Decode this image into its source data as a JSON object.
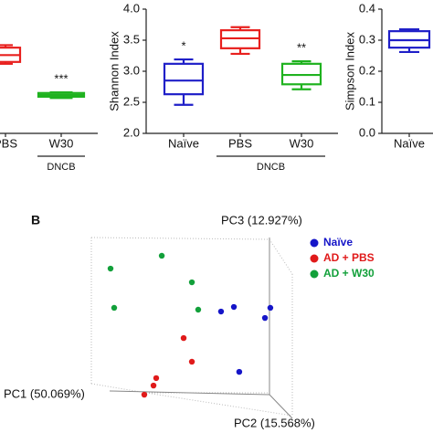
{
  "chart_data": [
    {
      "type": "box",
      "categories": [
        "PBS",
        "W30"
      ],
      "colors": [
        "#e8201e",
        "#1fb21f"
      ],
      "group_label": "DNCB",
      "ylim": [
        2.0,
        4.0
      ],
      "boxes": [
        {
          "min": 3.12,
          "q1": 3.15,
          "median": 3.26,
          "q3": 3.38,
          "max": 3.42
        },
        {
          "min": 2.57,
          "q1": 2.59,
          "median": 2.62,
          "q3": 2.65,
          "max": 2.66
        }
      ],
      "annotations": [
        null,
        "***"
      ]
    },
    {
      "type": "box",
      "y_label": "Shannon Index",
      "categories": [
        "Naïve",
        "PBS",
        "W30"
      ],
      "colors": [
        "#1f1fc8",
        "#e8201e",
        "#1fb21f"
      ],
      "group_label": "DNCB",
      "ylim": [
        2.0,
        4.0
      ],
      "yticks": [
        {
          "value": 2.0,
          "label": "2.0"
        },
        {
          "value": 2.5,
          "label": "2.5"
        },
        {
          "value": 3.0,
          "label": "3.0"
        },
        {
          "value": 3.5,
          "label": "3.5"
        },
        {
          "value": 4.0,
          "label": "4.0"
        }
      ],
      "boxes": [
        {
          "min": 2.46,
          "q1": 2.63,
          "median": 2.85,
          "q3": 3.12,
          "max": 3.19
        },
        {
          "min": 3.28,
          "q1": 3.37,
          "median": 3.53,
          "q3": 3.66,
          "max": 3.71
        },
        {
          "min": 2.71,
          "q1": 2.79,
          "median": 2.94,
          "q3": 3.12,
          "max": 3.16
        }
      ],
      "annotations": [
        "*",
        null,
        "**"
      ]
    },
    {
      "type": "box",
      "y_label": "Simpson Index",
      "categories": [
        "Naïve"
      ],
      "colors": [
        "#1f1fc8"
      ],
      "ylim": [
        0.0,
        0.4
      ],
      "yticks": [
        {
          "value": 0.0,
          "label": "0.0"
        },
        {
          "value": 0.1,
          "label": "0.1"
        },
        {
          "value": 0.2,
          "label": "0.2"
        },
        {
          "value": 0.3,
          "label": "0.3"
        },
        {
          "value": 0.4,
          "label": "0.4"
        }
      ],
      "boxes": [
        {
          "min": 0.262,
          "q1": 0.276,
          "median": 0.3,
          "q3": 0.329,
          "max": 0.335
        }
      ],
      "annotations": [
        null
      ]
    },
    {
      "type": "scatter3d",
      "panel": "B",
      "x_label": "PC1 (50.069%)",
      "y_label": "PC2 (15.568%)",
      "z_label": "PC3 (12.927%)",
      "series": [
        {
          "name": "Naïve",
          "color": "#1515c8",
          "x": [
            67.6,
            74.3,
            93.3,
            90.5,
            77.1
          ],
          "y": [
            56.2,
            58.9,
            58.4,
            52.4,
            20.5
          ]
        },
        {
          "name": "AD + PBS",
          "color": "#e01a1a",
          "x": [
            48.1,
            52.4,
            33.8,
            32.4,
            27.6
          ],
          "y": [
            40.5,
            26.5,
            16.8,
            12.4,
            7.0
          ]
        },
        {
          "name": "AD + W30",
          "color": "#12a03a",
          "x": [
            10.0,
            36.7,
            52.4,
            11.9,
            55.7
          ],
          "y": [
            81.6,
            89.2,
            73.5,
            58.4,
            57.3
          ]
        }
      ]
    }
  ]
}
